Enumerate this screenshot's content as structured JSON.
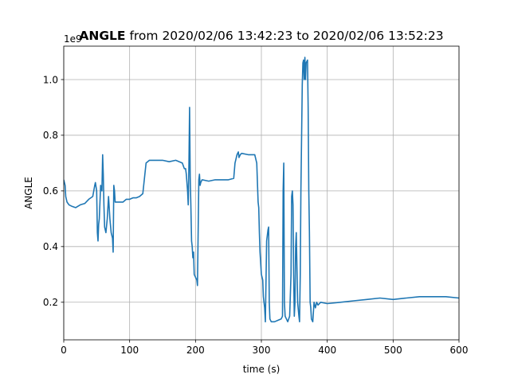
{
  "chart_data": {
    "type": "line",
    "title_bold": "ANGLE",
    "title_rest": " from 2020/02/06 13:42:23 to 2020/02/06 13:52:23",
    "xlabel": "time (s)",
    "ylabel": "ANGLE",
    "offset_label": "1e9",
    "xlim": [
      0,
      600
    ],
    "ylim": [
      0.065,
      1.12
    ],
    "xticks": [
      0,
      100,
      200,
      300,
      400,
      500,
      600
    ],
    "xtick_labels": [
      "0",
      "100",
      "200",
      "300",
      "400",
      "500",
      "600"
    ],
    "yticks": [
      0.2,
      0.4,
      0.6,
      0.8,
      1.0
    ],
    "ytick_labels": [
      "0.2",
      "0.4",
      "0.6",
      "0.8",
      "1.0"
    ],
    "grid": true,
    "line_color": "#1f77b4",
    "series": [
      {
        "x": [
          0,
          2,
          3,
          5,
          8,
          12,
          18,
          25,
          32,
          38,
          44,
          47,
          48,
          50,
          51,
          52,
          53,
          54,
          56,
          58,
          59,
          60,
          61,
          62,
          64,
          66,
          68,
          70,
          72,
          74,
          75,
          76,
          77,
          78,
          80,
          85,
          90,
          95,
          100,
          105,
          110,
          115,
          120,
          125,
          130,
          140,
          150,
          160,
          170,
          180,
          183,
          185,
          186,
          188,
          189,
          190,
          191,
          192,
          193,
          194,
          195,
          196,
          197,
          198,
          200,
          202,
          203,
          205,
          206,
          207,
          208,
          210,
          220,
          230,
          240,
          250,
          258,
          260,
          263,
          265,
          266,
          268,
          270,
          280,
          290,
          293,
          295,
          296,
          297,
          298,
          300,
          302,
          303,
          305,
          306,
          308,
          310,
          311,
          312,
          313,
          315,
          320,
          325,
          330,
          332,
          333,
          334,
          335,
          336,
          340,
          343,
          345,
          346,
          347,
          348,
          349,
          350,
          351,
          352,
          353,
          355,
          357,
          358,
          359,
          360,
          362,
          363,
          364,
          365,
          366,
          367,
          368,
          370,
          371,
          372,
          373,
          374,
          375,
          376,
          378,
          380,
          382,
          384,
          386,
          390,
          400,
          420,
          440,
          460,
          480,
          500,
          520,
          540,
          560,
          580,
          600
        ],
        "values": [
          0.64,
          0.62,
          0.58,
          0.56,
          0.55,
          0.545,
          0.54,
          0.55,
          0.555,
          0.57,
          0.58,
          0.62,
          0.63,
          0.6,
          0.45,
          0.42,
          0.48,
          0.5,
          0.62,
          0.6,
          0.73,
          0.66,
          0.55,
          0.47,
          0.45,
          0.5,
          0.58,
          0.5,
          0.45,
          0.43,
          0.38,
          0.62,
          0.6,
          0.56,
          0.56,
          0.56,
          0.56,
          0.57,
          0.57,
          0.575,
          0.575,
          0.58,
          0.59,
          0.7,
          0.71,
          0.71,
          0.71,
          0.705,
          0.71,
          0.7,
          0.68,
          0.68,
          0.66,
          0.6,
          0.55,
          0.7,
          0.9,
          0.65,
          0.55,
          0.42,
          0.4,
          0.36,
          0.38,
          0.3,
          0.29,
          0.28,
          0.26,
          0.64,
          0.66,
          0.62,
          0.63,
          0.64,
          0.635,
          0.64,
          0.64,
          0.64,
          0.645,
          0.7,
          0.73,
          0.74,
          0.72,
          0.73,
          0.735,
          0.73,
          0.73,
          0.7,
          0.56,
          0.54,
          0.45,
          0.38,
          0.3,
          0.28,
          0.22,
          0.18,
          0.13,
          0.42,
          0.46,
          0.47,
          0.2,
          0.14,
          0.13,
          0.13,
          0.135,
          0.14,
          0.15,
          0.6,
          0.7,
          0.2,
          0.15,
          0.13,
          0.15,
          0.3,
          0.58,
          0.6,
          0.55,
          0.3,
          0.15,
          0.2,
          0.4,
          0.45,
          0.2,
          0.15,
          0.13,
          0.3,
          0.6,
          0.98,
          1.06,
          1.07,
          1.0,
          1.08,
          1.0,
          1.06,
          1.07,
          0.9,
          0.6,
          0.45,
          0.2,
          0.18,
          0.14,
          0.13,
          0.2,
          0.18,
          0.2,
          0.19,
          0.2,
          0.195,
          0.2,
          0.205,
          0.21,
          0.215,
          0.21,
          0.215,
          0.22,
          0.22,
          0.22,
          0.215
        ]
      }
    ]
  }
}
